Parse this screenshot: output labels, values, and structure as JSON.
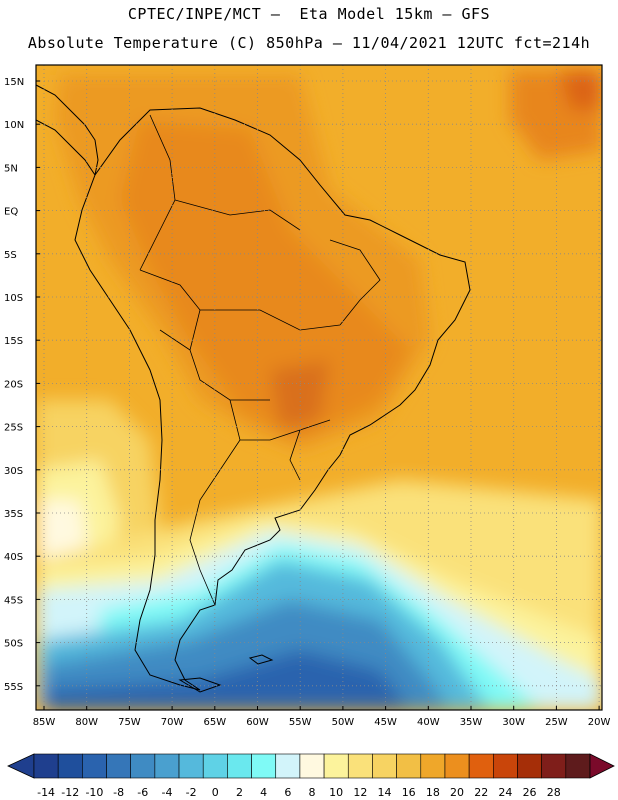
{
  "title_line1": "CPTEC/INPE/MCT –  Eta Model 15km – GFS",
  "title_line2": "Absolute Temperature (C) 850hPa – 11/04/2021 12UTC fct=214h",
  "lat_labels": [
    "15N",
    "10N",
    "5N",
    "EQ",
    "5S",
    "10S",
    "15S",
    "20S",
    "25S",
    "30S",
    "35S",
    "40S",
    "45S",
    "50S",
    "55S"
  ],
  "lon_labels": [
    "85W",
    "80W",
    "75W",
    "70W",
    "65W",
    "60W",
    "55W",
    "50W",
    "45W",
    "40W",
    "35W",
    "30W",
    "25W",
    "20W"
  ],
  "colorbar": {
    "labels": [
      "-14",
      "-12",
      "-10",
      "-8",
      "-6",
      "-4",
      "-2",
      "0",
      "2",
      "4",
      "6",
      "8",
      "10",
      "12",
      "14",
      "16",
      "18",
      "20",
      "22",
      "24",
      "26",
      "28"
    ],
    "colors": [
      "#1f3f8e",
      "#1f4f9c",
      "#2a63ae",
      "#3576b8",
      "#3f8bc3",
      "#4aa0cf",
      "#55b9dc",
      "#5fd2e6",
      "#6ae8ee",
      "#7ffaf6",
      "#d2f4fa",
      "#fff9e0",
      "#fcf39c",
      "#fae17a",
      "#f7d362",
      "#f2bf45",
      "#efa72a",
      "#ec8f1e",
      "#e0600e",
      "#c9450a",
      "#a52e08",
      "#7f1e1a",
      "#5e1b1c"
    ]
  }
}
